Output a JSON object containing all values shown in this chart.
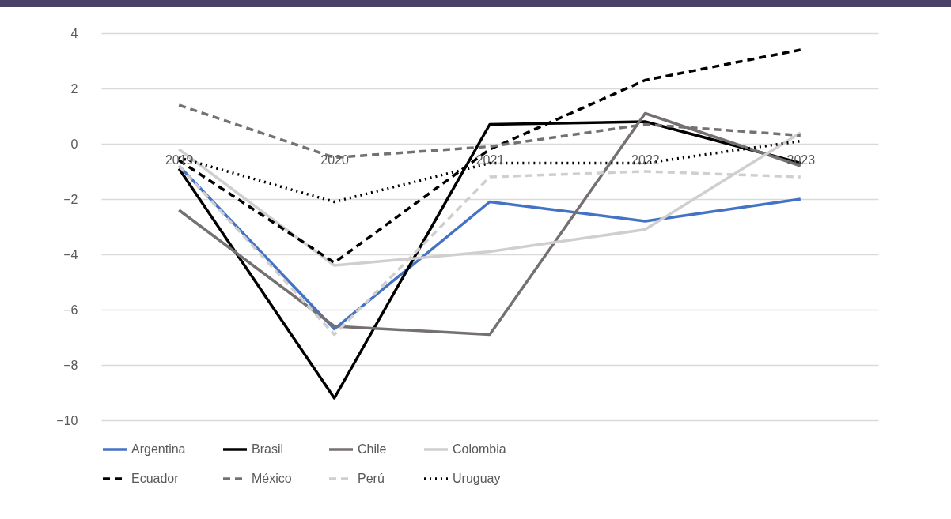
{
  "chart_data": {
    "type": "line",
    "categories": [
      "2019",
      "2020",
      "2021",
      "2022",
      "2023"
    ],
    "ylim": [
      -10,
      4
    ],
    "yticks": [
      -10,
      -8,
      -6,
      -4,
      -2,
      0,
      2,
      4
    ],
    "grid": "y",
    "legend": "bottom",
    "series": [
      {
        "name": "Argentina",
        "color": "#4472c4",
        "line_style": "solid",
        "values": [
          -0.8,
          -6.7,
          -2.1,
          -2.8,
          -2.0
        ]
      },
      {
        "name": "Brasil",
        "color": "#000000",
        "line_style": "solid",
        "values": [
          -0.9,
          -9.2,
          0.7,
          0.8,
          -0.7
        ]
      },
      {
        "name": "Chile",
        "color": "#767171",
        "line_style": "solid",
        "values": [
          -2.4,
          -6.6,
          -6.9,
          1.1,
          -0.8
        ]
      },
      {
        "name": "Colombia",
        "color": "#d0cece",
        "line_style": "solid",
        "values": [
          -0.2,
          -4.4,
          -3.9,
          -3.1,
          0.4
        ]
      },
      {
        "name": "Ecuador",
        "color": "#000000",
        "line_style": "dashed",
        "values": [
          -0.6,
          -4.3,
          -0.2,
          2.3,
          3.4
        ]
      },
      {
        "name": "México",
        "color": "#767171",
        "line_style": "dashed",
        "values": [
          1.4,
          -0.5,
          -0.1,
          0.7,
          0.3
        ]
      },
      {
        "name": "Perú",
        "color": "#d0cece",
        "line_style": "dashed",
        "values": [
          -0.8,
          -6.9,
          -1.2,
          -1.0,
          -1.2
        ]
      },
      {
        "name": "Uruguay",
        "color": "#000000",
        "line_style": "dotted",
        "values": [
          -0.5,
          -2.1,
          -0.7,
          -0.7,
          0.1
        ]
      }
    ]
  }
}
